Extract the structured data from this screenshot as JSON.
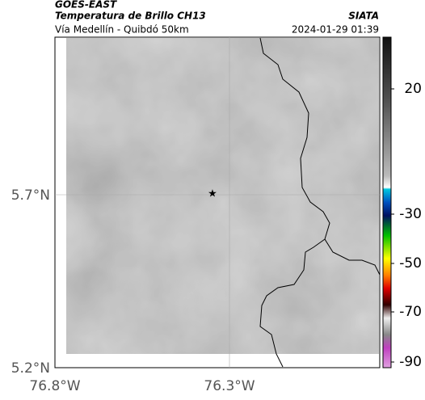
{
  "header": {
    "title": "GOES-EAST",
    "subtitle": "Temperatura de Brillo CH13",
    "source": "SIATA",
    "route": "Vía Medellín - Quibdó 50km",
    "datetime": "2024-01-29 01:39"
  },
  "map": {
    "lat_labels": [
      "5.7°N",
      "5.2°N"
    ],
    "lon_labels": [
      "76.8°W",
      "76.3°W"
    ]
  },
  "colorbar": {
    "ticks": [
      20,
      -30,
      -50,
      -70,
      -90
    ]
  }
}
